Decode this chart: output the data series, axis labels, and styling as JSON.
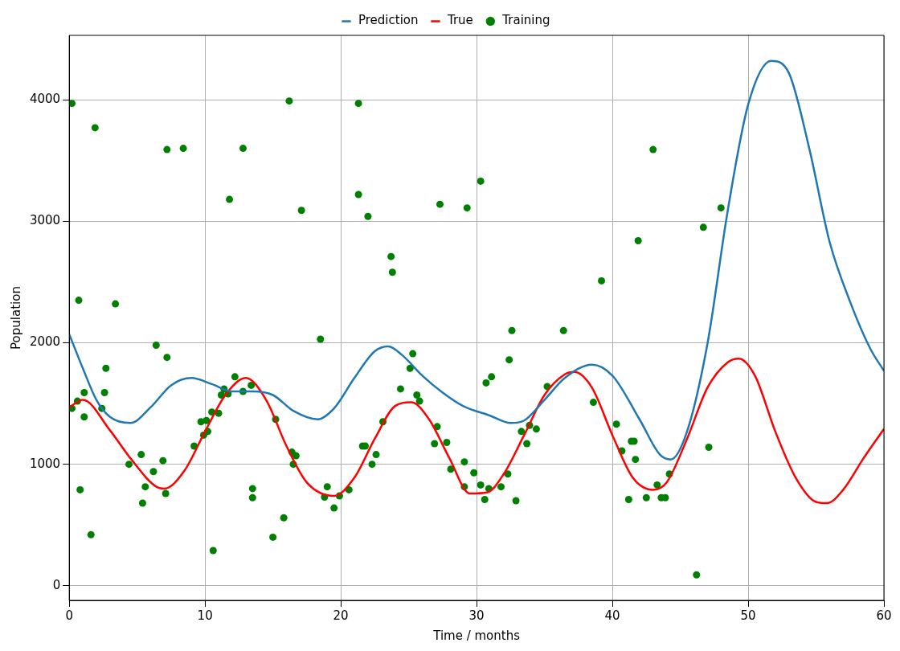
{
  "chart_data": {
    "type": "line",
    "xlabel": "Time / months",
    "ylabel": "Population",
    "xlim": [
      0,
      60
    ],
    "xticks": [
      0,
      10,
      20,
      30,
      40,
      50,
      60
    ],
    "ylim": [
      -120,
      4530
    ],
    "yticks": [
      0,
      1000,
      2000,
      3000,
      4000
    ],
    "grid": true,
    "legend": "top",
    "series": [
      {
        "name": "Prediction",
        "color": "#1f77b4",
        "marker": "none",
        "line_style": "solid",
        "x": [
          0,
          1,
          2,
          3,
          4.5,
          6,
          7.5,
          9,
          10.5,
          12,
          13.5,
          15,
          16.5,
          18.3,
          19.5,
          21,
          22.5,
          23.5,
          24.5,
          26,
          27.5,
          29,
          31,
          32.5,
          33.5,
          35,
          36.5,
          38.5,
          40,
          42,
          43.5,
          44.3,
          45.5,
          47,
          48.5,
          50,
          51.7,
          53,
          54.5,
          56,
          57.5,
          59,
          60
        ],
        "values": [
          2070,
          1790,
          1530,
          1390,
          1340,
          1470,
          1650,
          1710,
          1660,
          1600,
          1600,
          1570,
          1440,
          1370,
          1460,
          1710,
          1930,
          1970,
          1900,
          1730,
          1590,
          1480,
          1400,
          1340,
          1360,
          1530,
          1710,
          1820,
          1730,
          1370,
          1080,
          1040,
          1270,
          1990,
          3090,
          3960,
          4320,
          4220,
          3600,
          2830,
          2340,
          1950,
          1770
        ]
      },
      {
        "name": "True",
        "color": "#ff0000",
        "marker": "none",
        "line_style": "solid",
        "x": [
          0,
          1,
          3,
          4.5,
          6.5,
          7,
          8.5,
          10,
          11.5,
          13,
          14.5,
          16,
          17.5,
          19.5,
          21,
          22.5,
          24,
          25.2,
          26.5,
          28,
          29.5,
          30.8,
          32,
          33.5,
          35,
          36.5,
          37.2,
          38.5,
          40,
          41.5,
          43,
          44,
          45.5,
          47,
          48.5,
          49.3,
          50.5,
          52,
          53.5,
          55,
          55.8,
          57,
          58.5,
          60
        ],
        "values": [
          1470,
          1530,
          1280,
          1050,
          810,
          800,
          950,
          1270,
          1570,
          1710,
          1530,
          1150,
          850,
          740,
          890,
          1210,
          1480,
          1510,
          1370,
          1050,
          760,
          770,
          920,
          1240,
          1570,
          1740,
          1760,
          1630,
          1240,
          890,
          790,
          850,
          1210,
          1630,
          1840,
          1870,
          1730,
          1270,
          890,
          690,
          680,
          790,
          1050,
          1290
        ]
      },
      {
        "name": "Training",
        "type": "scatter",
        "color": "#008000",
        "marker": "circle",
        "x": [
          0.2,
          0.2,
          0.6,
          0.7,
          0.8,
          1.1,
          1.1,
          1.6,
          1.9,
          2.4,
          2.6,
          2.7,
          3.4,
          4.4,
          5.3,
          5.6,
          5.4,
          6.2,
          6.4,
          6.9,
          7.1,
          7.2,
          7.2,
          8.4,
          9.2,
          9.7,
          10.1,
          9.9,
          10.2,
          10.5,
          10.6,
          11.0,
          11.2,
          11.4,
          11.7,
          11.8,
          12.2,
          12.8,
          12.8,
          13.4,
          13.5,
          13.5,
          15.2,
          15.0,
          15.8,
          16.2,
          16.4,
          16.7,
          16.5,
          17.1,
          18.5,
          18.8,
          19.0,
          19.5,
          19.9,
          20.6,
          21.3,
          21.3,
          21.6,
          21.8,
          22.0,
          22.3,
          22.6,
          23.1,
          23.7,
          23.8,
          24.4,
          25.1,
          25.3,
          25.6,
          25.8,
          26.9,
          27.1,
          27.3,
          27.8,
          28.1,
          29.1,
          29.1,
          29.3,
          29.8,
          30.3,
          30.3,
          30.6,
          30.7,
          30.9,
          31.1,
          31.8,
          32.3,
          32.4,
          32.6,
          32.9,
          33.3,
          33.7,
          33.9,
          34.4,
          35.2,
          36.4,
          38.6,
          39.2,
          40.3,
          40.7,
          41.2,
          41.4,
          41.6,
          41.7,
          41.9,
          42.5,
          43.0,
          43.3,
          43.6,
          43.9,
          44.2,
          46.2,
          46.7,
          47.1,
          48.0
        ],
        "values": [
          3970,
          1460,
          1520,
          2350,
          790,
          1590,
          1390,
          420,
          3770,
          1460,
          1590,
          1790,
          2320,
          1000,
          1080,
          815,
          680,
          940,
          1980,
          1030,
          760,
          3590,
          1880,
          3600,
          1150,
          1350,
          1360,
          1240,
          1270,
          1430,
          290,
          1420,
          1570,
          1620,
          1580,
          3180,
          1720,
          1600,
          3600,
          1650,
          800,
          725,
          1370,
          400,
          560,
          3990,
          1100,
          1070,
          1000,
          3090,
          2030,
          730,
          815,
          640,
          740,
          790,
          3970,
          3220,
          1150,
          1150,
          3040,
          1000,
          1080,
          1350,
          2710,
          2580,
          1620,
          1790,
          1910,
          1570,
          1520,
          1170,
          1310,
          3140,
          1180,
          960,
          1020,
          815,
          3110,
          930,
          830,
          3330,
          710,
          1670,
          800,
          1720,
          815,
          920,
          1860,
          2100,
          700,
          1270,
          1170,
          1320,
          1290,
          1640,
          2100,
          1510,
          2510,
          1330,
          1110,
          710,
          1190,
          1190,
          1040,
          2840,
          725,
          3590,
          830,
          725,
          725,
          920,
          90,
          2950,
          1140,
          3110
        ]
      }
    ]
  }
}
